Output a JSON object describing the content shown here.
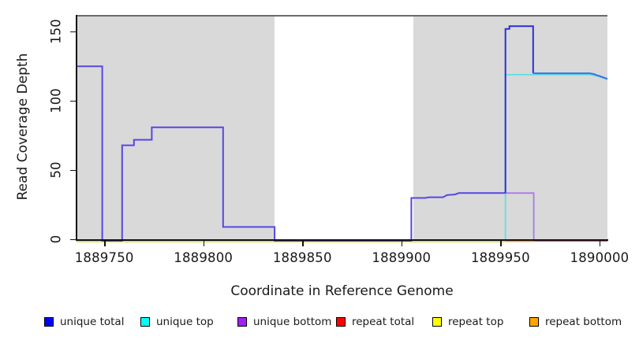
{
  "chart_data": {
    "type": "line",
    "style": "step-coverage-plot",
    "xlabel": "Coordinate in Reference Genome",
    "ylabel": "Read Coverage Depth",
    "x_domain": [
      1889736,
      1890004
    ],
    "y_domain": [
      0,
      162
    ],
    "grid": "off",
    "plot_bg": "#ffffff",
    "shaded_region_color": "#d9d9d9",
    "x_ticks": [
      {
        "value": 1889750,
        "label": "1889750"
      },
      {
        "value": 1889800,
        "label": "1889800"
      },
      {
        "value": 1889850,
        "label": "1889850"
      },
      {
        "value": 1889900,
        "label": "1889900"
      },
      {
        "value": 1889950,
        "label": "1889950"
      },
      {
        "value": 1890000,
        "label": "1890000"
      }
    ],
    "y_ticks": [
      {
        "value": 0,
        "label": "0"
      },
      {
        "value": 50,
        "label": "50"
      },
      {
        "value": 100,
        "label": "100"
      },
      {
        "value": 150,
        "label": "150"
      }
    ],
    "shaded_regions": [
      {
        "from": 1889736,
        "to": 1889836,
        "color": "#d9d9d9"
      },
      {
        "from": 1889906,
        "to": 1890004,
        "color": "#d9d9d9"
      }
    ],
    "series": [
      {
        "name": "unique total",
        "color": "#0000ff",
        "step_points": [
          [
            1889736,
            126
          ],
          [
            1889749,
            0
          ],
          [
            1889759,
            69
          ],
          [
            1889765,
            73
          ],
          [
            1889774,
            82
          ],
          [
            1889810,
            10
          ],
          [
            1889836,
            0
          ],
          [
            1889905,
            31
          ],
          [
            1889921,
            33
          ],
          [
            1889928,
            34.5
          ],
          [
            1889952,
            155
          ],
          [
            1889966,
            121
          ],
          [
            1889996,
            120
          ],
          [
            1890000,
            118
          ],
          [
            1890004,
            117
          ]
        ]
      },
      {
        "name": "unique top",
        "color": "#00ffff",
        "step_points": [
          [
            1889736,
            0
          ],
          [
            1889952,
            120
          ],
          [
            1889996,
            119
          ],
          [
            1890000,
            117
          ],
          [
            1890004,
            116
          ]
        ]
      },
      {
        "name": "unique bottom",
        "color": "#a020f0",
        "step_points": [
          [
            1889736,
            126
          ],
          [
            1889749,
            0
          ],
          [
            1889759,
            69
          ],
          [
            1889765,
            73
          ],
          [
            1889774,
            82
          ],
          [
            1889810,
            10
          ],
          [
            1889836,
            0
          ],
          [
            1889905,
            31
          ],
          [
            1889921,
            33
          ],
          [
            1889928,
            34.5
          ],
          [
            1889966,
            0
          ]
        ]
      },
      {
        "name": "repeat total",
        "color": "#ff0000",
        "step_points": [
          [
            1889736,
            0
          ],
          [
            1890004,
            0
          ]
        ]
      },
      {
        "name": "repeat top",
        "color": "#ffff00",
        "step_points": [
          [
            1889736,
            0
          ],
          [
            1890004,
            0
          ]
        ]
      },
      {
        "name": "repeat bottom",
        "color": "#ffa500",
        "step_points": [
          [
            1889736,
            0
          ],
          [
            1890004,
            0
          ]
        ]
      }
    ],
    "render_segments": [
      {
        "name": "repeat-top-zero-line",
        "color": "#e8e48a",
        "width": 1.4,
        "dy": 1.6,
        "points": [
          [
            1889736,
            0
          ],
          [
            1889952.5,
            0
          ]
        ]
      },
      {
        "name": "unique-top-zero-line-green-blend",
        "color": "#8fd48f",
        "width": 1.8,
        "dy": -0.2,
        "points": [
          [
            1889736,
            0
          ],
          [
            1889952.5,
            0
          ]
        ]
      },
      {
        "name": "repeat-bottom-zero-line",
        "color": "#ff9e2c",
        "width": 2.2,
        "dy": 0.4,
        "points": [
          [
            1889952.5,
            0
          ],
          [
            1889966.8,
            0
          ]
        ]
      },
      {
        "name": "repeat-total-zero-line",
        "color": "#df5472",
        "width": 1.8,
        "dy": 0.2,
        "points": [
          [
            1889966.8,
            0
          ],
          [
            1890004,
            0
          ]
        ]
      },
      {
        "name": "unique-top-line",
        "color": "#5fdfe2",
        "width": 1.8,
        "dy": 0,
        "points": [
          [
            1889952.5,
            0
          ],
          [
            1889952.5,
            120
          ],
          [
            1889995,
            120
          ],
          [
            1889997,
            119.5
          ],
          [
            1890000,
            118.5
          ],
          [
            1890002,
            117.5
          ],
          [
            1890004,
            116.5
          ]
        ]
      },
      {
        "name": "unique-bottom-line",
        "color": "#a87ae8",
        "width": 1.8,
        "dy": 0,
        "points": [
          [
            1889952.5,
            34.5
          ],
          [
            1889966.8,
            34.5
          ],
          [
            1889966.8,
            0
          ]
        ]
      },
      {
        "name": "unique-total-left",
        "color": "#5747e4",
        "width": 2,
        "dy": 0,
        "points": [
          [
            1889736,
            126
          ],
          [
            1889749,
            126
          ],
          [
            1889749,
            0
          ],
          [
            1889759,
            0
          ],
          [
            1889759,
            69
          ],
          [
            1889765,
            69
          ],
          [
            1889765,
            73
          ],
          [
            1889774,
            73
          ],
          [
            1889774,
            82
          ],
          [
            1889810,
            82
          ],
          [
            1889810,
            10
          ],
          [
            1889836,
            10
          ],
          [
            1889836,
            0
          ],
          [
            1889905,
            0
          ],
          [
            1889905,
            31
          ],
          [
            1889912,
            31
          ],
          [
            1889914,
            31.5
          ],
          [
            1889921,
            31.5
          ],
          [
            1889923,
            33
          ],
          [
            1889927,
            33.5
          ],
          [
            1889929,
            34.5
          ],
          [
            1889952.5,
            34.5
          ]
        ]
      },
      {
        "name": "unique-total-spike",
        "color": "#2d2ddd",
        "width": 2,
        "dy": 0,
        "points": [
          [
            1889952.5,
            34.5
          ],
          [
            1889952.5,
            153
          ],
          [
            1889954.5,
            153
          ],
          [
            1889954.5,
            155
          ],
          [
            1889966.5,
            155
          ],
          [
            1889966.5,
            121
          ]
        ]
      },
      {
        "name": "unique-total-right",
        "color": "#3e70e2",
        "width": 2,
        "dy": 0,
        "points": [
          [
            1889966.5,
            121
          ],
          [
            1889995,
            121
          ],
          [
            1889997,
            120.5
          ],
          [
            1889999,
            119.5
          ],
          [
            1890001,
            118.5
          ],
          [
            1890003,
            117.5
          ],
          [
            1890004,
            117
          ]
        ]
      }
    ],
    "legend": {
      "items": [
        {
          "label": "unique total",
          "color": "#0000ff"
        },
        {
          "label": "unique top",
          "color": "#00ffff"
        },
        {
          "label": "unique bottom",
          "color": "#a020f0"
        },
        {
          "label": "repeat total",
          "color": "#ff0000"
        },
        {
          "label": "repeat top",
          "color": "#ffff00"
        },
        {
          "label": "repeat bottom",
          "color": "#ffa500"
        }
      ],
      "item_x": [
        56,
        178,
        301,
        426,
        548,
        671
      ]
    }
  }
}
